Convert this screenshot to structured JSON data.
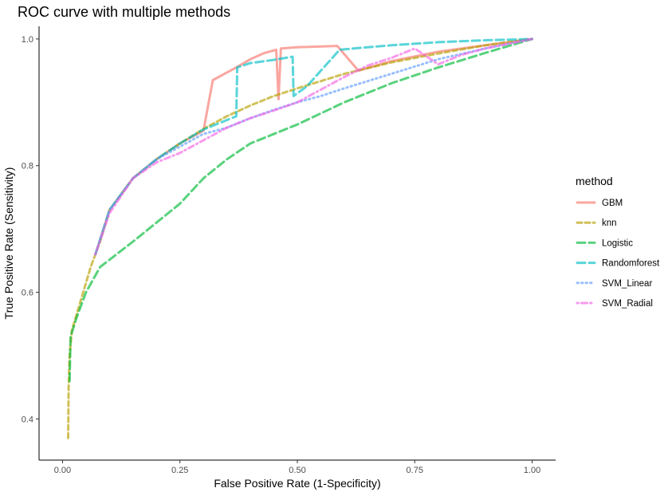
{
  "chart_data": {
    "type": "line",
    "title": "ROC curve with multiple methods",
    "xlabel": "False Positive Rate (1-Specificity)",
    "ylabel": "True Positive Rate (Sensitivity)",
    "xlim": [
      -0.05,
      1.05
    ],
    "ylim": [
      0.335,
      1.02
    ],
    "x_ticks": [
      0.0,
      0.25,
      0.5,
      0.75,
      1.0
    ],
    "x_tick_labels": [
      "0.00",
      "0.25",
      "0.50",
      "0.75",
      "1.00"
    ],
    "y_ticks": [
      0.4,
      0.6,
      0.8,
      1.0
    ],
    "y_tick_labels": [
      "0.4",
      "0.6",
      "0.8",
      "1.0"
    ],
    "grid": false,
    "legend_title": "method",
    "legend_position": "right",
    "series": [
      {
        "name": "GBM",
        "color": "#F8766D",
        "dash": "solid",
        "points": [
          [
            0.07,
            0.66
          ],
          [
            0.1,
            0.73
          ],
          [
            0.15,
            0.78
          ],
          [
            0.2,
            0.81
          ],
          [
            0.25,
            0.835
          ],
          [
            0.3,
            0.855
          ],
          [
            0.32,
            0.935
          ],
          [
            0.37,
            0.955
          ],
          [
            0.4,
            0.968
          ],
          [
            0.43,
            0.978
          ],
          [
            0.455,
            0.983
          ],
          [
            0.46,
            0.905
          ],
          [
            0.465,
            0.985
          ],
          [
            0.5,
            0.987
          ],
          [
            0.585,
            0.989
          ],
          [
            0.63,
            0.95
          ],
          [
            0.7,
            0.965
          ],
          [
            0.8,
            0.98
          ],
          [
            0.9,
            0.99
          ],
          [
            1.0,
            1.0
          ]
        ]
      },
      {
        "name": "knn",
        "color": "#B79F00",
        "dash": "dashed",
        "points": [
          [
            0.012,
            0.37
          ],
          [
            0.013,
            0.45
          ],
          [
            0.015,
            0.5
          ],
          [
            0.02,
            0.54
          ],
          [
            0.04,
            0.59
          ],
          [
            0.06,
            0.64
          ],
          [
            0.08,
            0.68
          ],
          [
            0.1,
            0.73
          ],
          [
            0.15,
            0.78
          ],
          [
            0.2,
            0.81
          ],
          [
            0.25,
            0.835
          ],
          [
            0.3,
            0.858
          ],
          [
            0.35,
            0.878
          ],
          [
            0.4,
            0.895
          ],
          [
            0.45,
            0.91
          ],
          [
            0.5,
            0.922
          ],
          [
            0.6,
            0.945
          ],
          [
            0.7,
            0.963
          ],
          [
            0.8,
            0.977
          ],
          [
            0.9,
            0.99
          ],
          [
            1.0,
            1.0
          ]
        ]
      },
      {
        "name": "Logistic",
        "color": "#00BA38",
        "dash": "longdash",
        "points": [
          [
            0.015,
            0.46
          ],
          [
            0.017,
            0.53
          ],
          [
            0.03,
            0.56
          ],
          [
            0.05,
            0.6
          ],
          [
            0.08,
            0.64
          ],
          [
            0.15,
            0.68
          ],
          [
            0.2,
            0.71
          ],
          [
            0.25,
            0.74
          ],
          [
            0.3,
            0.78
          ],
          [
            0.35,
            0.81
          ],
          [
            0.4,
            0.835
          ],
          [
            0.5,
            0.865
          ],
          [
            0.6,
            0.9
          ],
          [
            0.7,
            0.93
          ],
          [
            0.8,
            0.955
          ],
          [
            0.9,
            0.978
          ],
          [
            1.0,
            1.0
          ]
        ]
      },
      {
        "name": "Randomforest",
        "color": "#00BFC4",
        "dash": "longdash",
        "points": [
          [
            0.07,
            0.66
          ],
          [
            0.1,
            0.73
          ],
          [
            0.15,
            0.78
          ],
          [
            0.2,
            0.81
          ],
          [
            0.25,
            0.835
          ],
          [
            0.3,
            0.857
          ],
          [
            0.37,
            0.878
          ],
          [
            0.372,
            0.955
          ],
          [
            0.4,
            0.962
          ],
          [
            0.45,
            0.967
          ],
          [
            0.49,
            0.972
          ],
          [
            0.492,
            0.91
          ],
          [
            0.52,
            0.925
          ],
          [
            0.59,
            0.983
          ],
          [
            0.65,
            0.987
          ],
          [
            0.7,
            0.99
          ],
          [
            0.8,
            0.995
          ],
          [
            0.9,
            0.998
          ],
          [
            1.0,
            1.0
          ]
        ]
      },
      {
        "name": "SVM_Linear",
        "color": "#619CFF",
        "dash": "dotted",
        "points": [
          [
            0.07,
            0.66
          ],
          [
            0.1,
            0.73
          ],
          [
            0.15,
            0.78
          ],
          [
            0.2,
            0.81
          ],
          [
            0.25,
            0.83
          ],
          [
            0.3,
            0.85
          ],
          [
            0.35,
            0.86
          ],
          [
            0.4,
            0.875
          ],
          [
            0.45,
            0.888
          ],
          [
            0.5,
            0.9
          ],
          [
            0.55,
            0.91
          ],
          [
            0.6,
            0.922
          ],
          [
            0.7,
            0.945
          ],
          [
            0.8,
            0.968
          ],
          [
            0.9,
            0.985
          ],
          [
            1.0,
            1.0
          ]
        ]
      },
      {
        "name": "SVM_Radial",
        "color": "#F564E3",
        "dash": "dotdash",
        "points": [
          [
            0.07,
            0.66
          ],
          [
            0.1,
            0.725
          ],
          [
            0.15,
            0.78
          ],
          [
            0.2,
            0.805
          ],
          [
            0.25,
            0.82
          ],
          [
            0.3,
            0.84
          ],
          [
            0.35,
            0.86
          ],
          [
            0.4,
            0.875
          ],
          [
            0.45,
            0.887
          ],
          [
            0.5,
            0.9
          ],
          [
            0.55,
            0.92
          ],
          [
            0.6,
            0.94
          ],
          [
            0.65,
            0.958
          ],
          [
            0.7,
            0.97
          ],
          [
            0.75,
            0.985
          ],
          [
            0.8,
            0.96
          ],
          [
            0.85,
            0.975
          ],
          [
            0.9,
            0.985
          ],
          [
            1.0,
            1.0
          ]
        ]
      }
    ]
  }
}
